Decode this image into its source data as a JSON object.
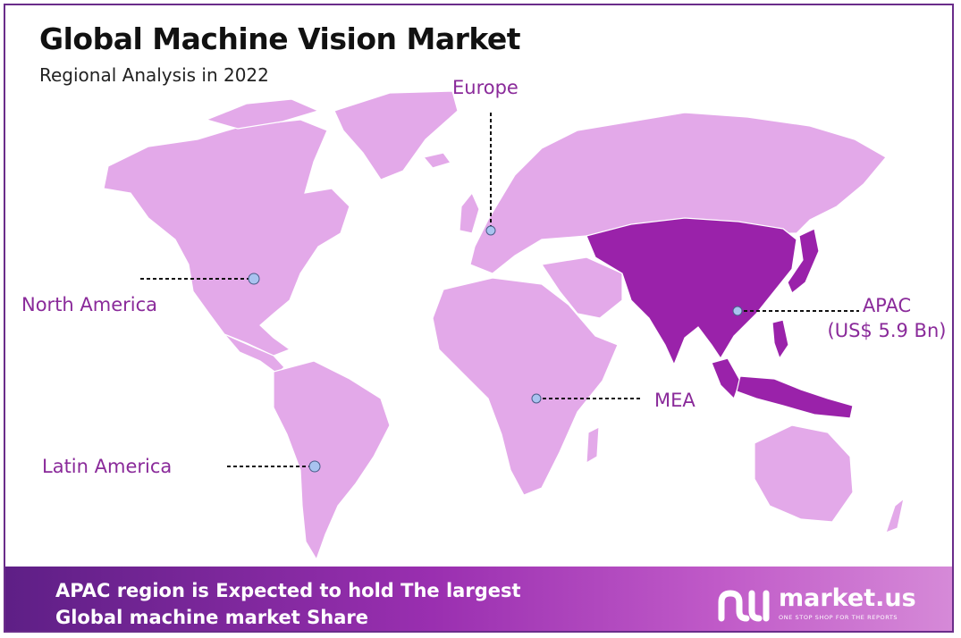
{
  "title": "Global Machine Vision Market",
  "subtitle": "Regional Analysis in 2022",
  "regions": {
    "europe": "Europe",
    "north_america": "North America",
    "apac_name": "APAC",
    "apac_value": "(US$ 5.9 Bn)",
    "mea": "MEA",
    "latin_america": "Latin America"
  },
  "highlighted_region": "APAC",
  "banner": {
    "line1": "APAC region is Expected to hold The largest",
    "line2": "Global machine market Share"
  },
  "brand": {
    "name": "market.us",
    "tagline": "ONE STOP SHOP FOR THE REPORTS"
  },
  "colors": {
    "land": "#e3a9e9",
    "highlight": "#9a22aa",
    "label": "#8a2a9a",
    "banner_start": "#5e1f86",
    "banner_end": "#d68ad8",
    "marker": "#a9c3f0"
  }
}
